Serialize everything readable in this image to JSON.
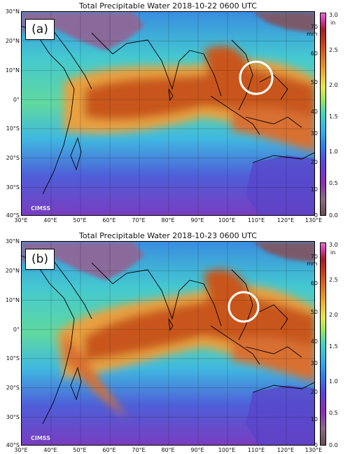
{
  "panels": [
    {
      "title": "Total Precipitable Water  2018-10-22 0600 UTC",
      "tag": "(a)",
      "logo_text": "CIMSS"
    },
    {
      "title": "Total Precipitable Water  2018-10-23 0600 UTC",
      "tag": "(b)",
      "logo_text": "CIMSS"
    }
  ],
  "axes": {
    "lat_labels": [
      "30°N",
      "20°N",
      "10°N",
      "0°",
      "10°S",
      "20°S",
      "30°S",
      "40°S"
    ],
    "lon_labels": [
      "30°E",
      "40°E",
      "50°E",
      "60°E",
      "70°E",
      "80°E",
      "90°E",
      "100°E",
      "110°E",
      "120°E",
      "130°E"
    ]
  },
  "colorbar": {
    "mm_unit": "mm",
    "in_unit": "in",
    "mm_ticks": [
      "70",
      "60",
      "50",
      "40",
      "30",
      "20",
      "10",
      "0"
    ],
    "in_ticks": [
      "3.0",
      "2.5",
      "2.0",
      "1.5",
      "1.0",
      "0.5",
      "0.0"
    ]
  },
  "colors": {
    "moist": "#c2561e",
    "very_moist": "#a83a1c",
    "mid": "#3fd4c0",
    "dry": "#5a44d8",
    "land_dry": "#7a5a5a",
    "circle": "#ffffff"
  }
}
